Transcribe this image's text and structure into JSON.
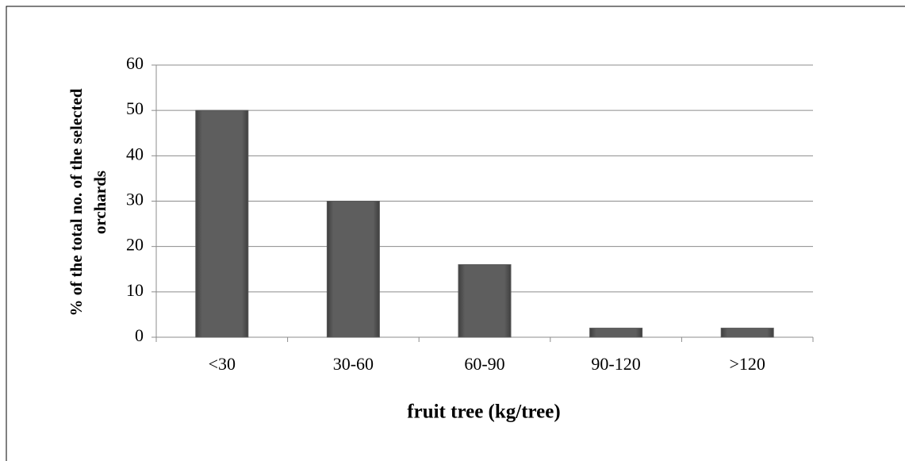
{
  "chart_data": {
    "type": "bar",
    "categories": [
      "<30",
      "30-60",
      "60-90",
      "90-120",
      ">120"
    ],
    "values": [
      50,
      30,
      16,
      2,
      2
    ],
    "color": "#595959",
    "ylim": [
      0,
      60
    ],
    "yticks": [
      0,
      10,
      20,
      30,
      40,
      50,
      60
    ],
    "grid": true,
    "xlabel": "fruit tree (kg/tree)",
    "ylabel": [
      "% of the total no. of the selected",
      "orchards"
    ]
  }
}
